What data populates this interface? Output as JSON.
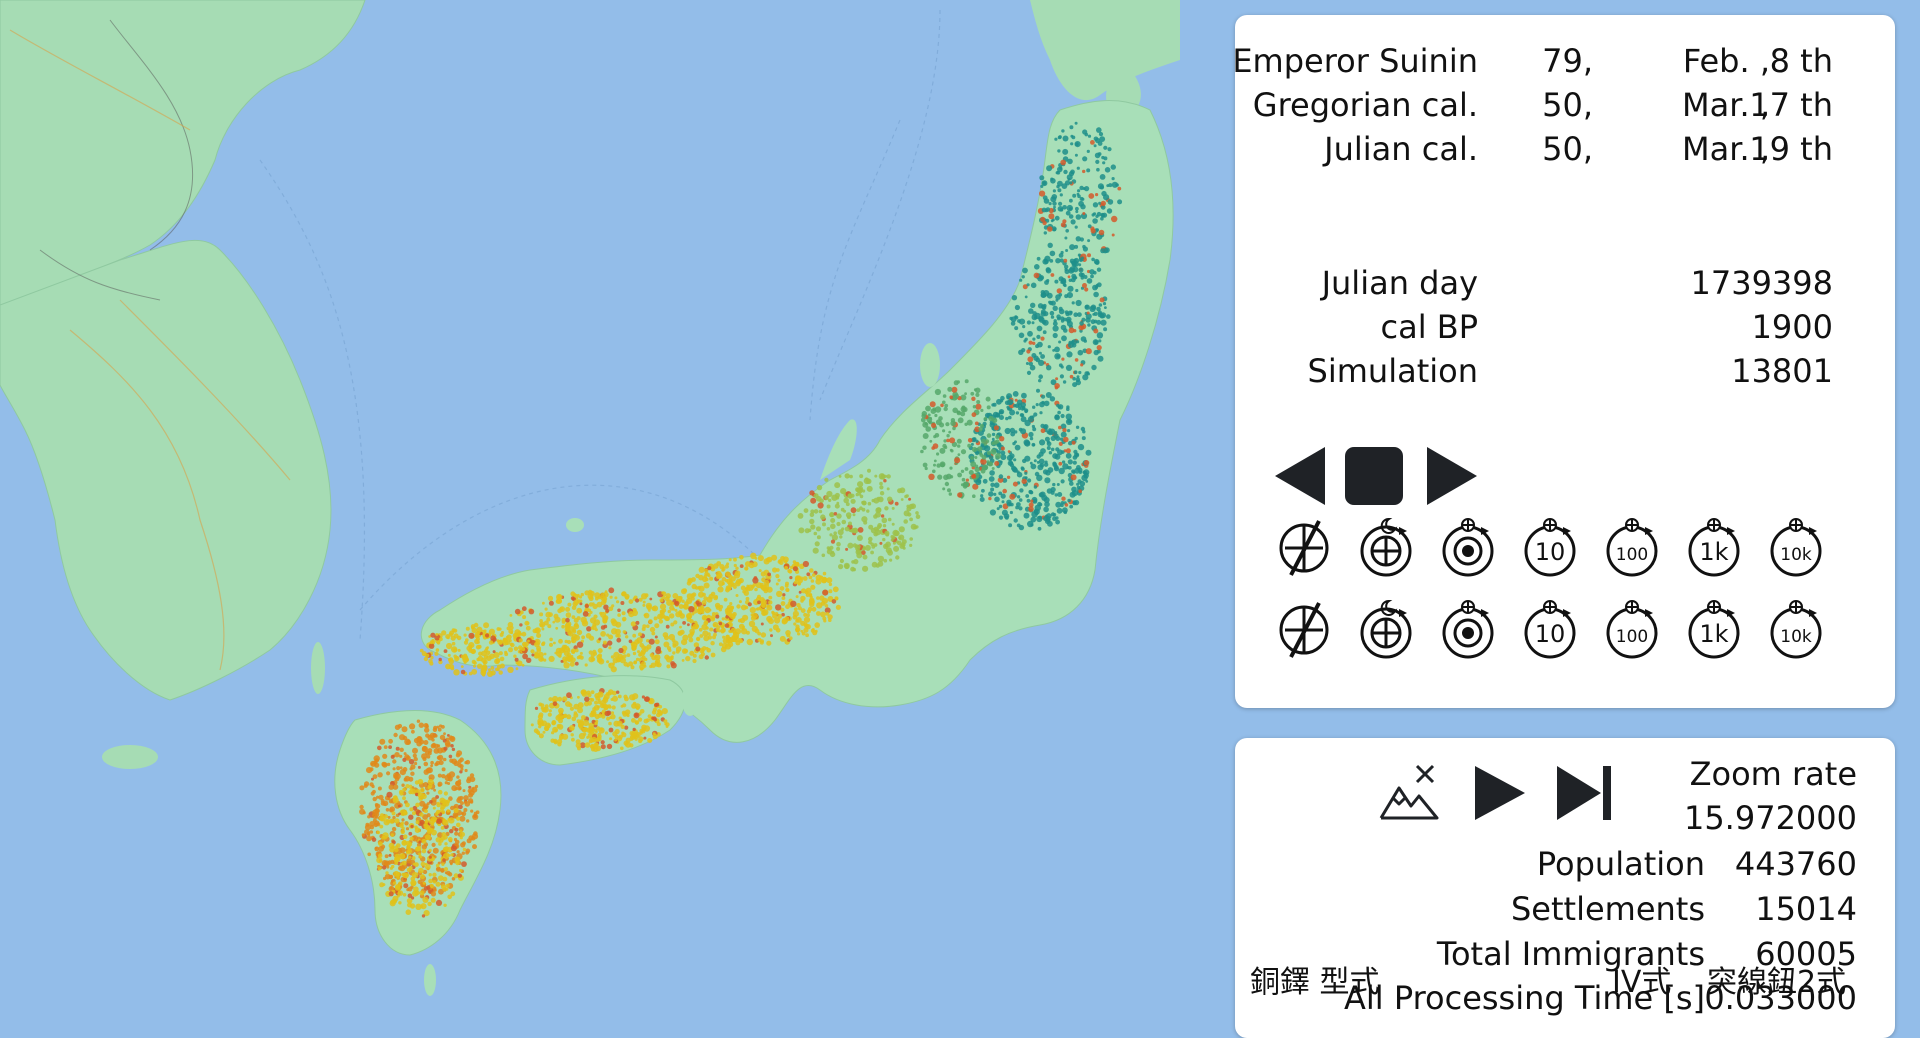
{
  "calendar": {
    "rows": [
      {
        "label": "Emperor Suinin",
        "year": "79,",
        "month": "Feb. ,",
        "day": "8 th"
      },
      {
        "label": "Gregorian cal.",
        "year": "50,",
        "month": "Mar. ,",
        "day": "17 th"
      },
      {
        "label": "Julian cal.",
        "year": "50,",
        "month": "Mar. ,",
        "day": "19 th"
      }
    ],
    "counters": [
      {
        "label": "Julian day",
        "value": "1739398"
      },
      {
        "label": "cal BP",
        "value": "1900"
      },
      {
        "label": "Simulation",
        "value": "13801"
      }
    ]
  },
  "time_buttons": {
    "rows": [
      [
        "none",
        "moon",
        "target",
        "10",
        "100",
        "1k",
        "10k"
      ],
      [
        "none",
        "moon",
        "target",
        "10",
        "100",
        "1k",
        "10k"
      ]
    ]
  },
  "stats": {
    "zoom_label": "Zoom rate",
    "zoom_value": "15.972000",
    "population_label": "Population",
    "population_value": "443760",
    "settlements_label": "Settlements",
    "settlements_value": "15014",
    "immigrants_label": "Total Immigrants",
    "immigrants_value": "60005",
    "processing_label": "All Processing Time [s]",
    "processing_value": "0.033000"
  },
  "overlay": {
    "left": "銅鐸 型式",
    "center": "IV式",
    "right": "突線鈕2式"
  },
  "colors": {
    "sea": "#93bde9",
    "land": "#a8dfb8",
    "east_settlement": "#1f8f8a",
    "west_settlement": "#e0c21a",
    "kyushu_settlement": "#e08a1a"
  },
  "icons": [
    "step-back-icon",
    "stop-icon",
    "step-forward-icon",
    "terrain-toggle-icon",
    "play-icon",
    "skip-end-icon"
  ]
}
